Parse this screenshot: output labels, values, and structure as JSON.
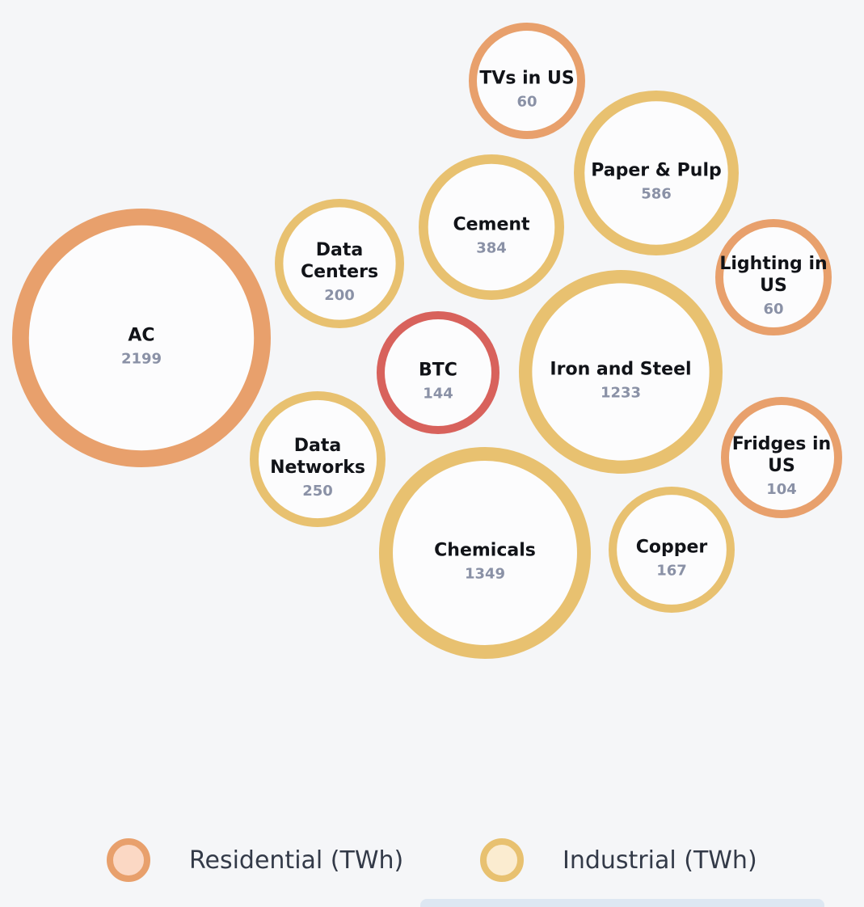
{
  "chart_data": {
    "type": "bubble",
    "unit": "TWh",
    "bubbles": [
      {
        "label": "AC",
        "value": 2199,
        "category": "Residential"
      },
      {
        "label": "TVs in US",
        "value": 60,
        "category": "Residential"
      },
      {
        "label": "Paper & Pulp",
        "value": 586,
        "category": "Industrial"
      },
      {
        "label": "Cement",
        "value": 384,
        "category": "Industrial"
      },
      {
        "label": "Data Centers",
        "value": 200,
        "category": "Industrial"
      },
      {
        "label": "Lighting in US",
        "value": 60,
        "category": "Residential"
      },
      {
        "label": "BTC",
        "value": 144,
        "category": "BTC"
      },
      {
        "label": "Iron and Steel",
        "value": 1233,
        "category": "Industrial"
      },
      {
        "label": "Data Networks",
        "value": 250,
        "category": "Industrial"
      },
      {
        "label": "Fridges in US",
        "value": 104,
        "category": "Residential"
      },
      {
        "label": "Chemicals",
        "value": 1349,
        "category": "Industrial"
      },
      {
        "label": "Copper",
        "value": 167,
        "category": "Industrial"
      }
    ],
    "legend": [
      {
        "label": "Residential (TWh)",
        "category": "Residential"
      },
      {
        "label": "Industrial (TWh)",
        "category": "Industrial"
      }
    ]
  },
  "colors": {
    "Residential": {
      "ring": "#e8a06c",
      "fill": "#fbd8c4"
    },
    "Industrial": {
      "ring": "#e8c170",
      "fill": "#fbecd0"
    },
    "BTC": {
      "ring": "#d8625c",
      "fill": "#fde9e6"
    },
    "bubble_fill": "#fcfcfd",
    "label": "#111318",
    "value": "#8a91a6",
    "background": "#f5f6f8"
  }
}
